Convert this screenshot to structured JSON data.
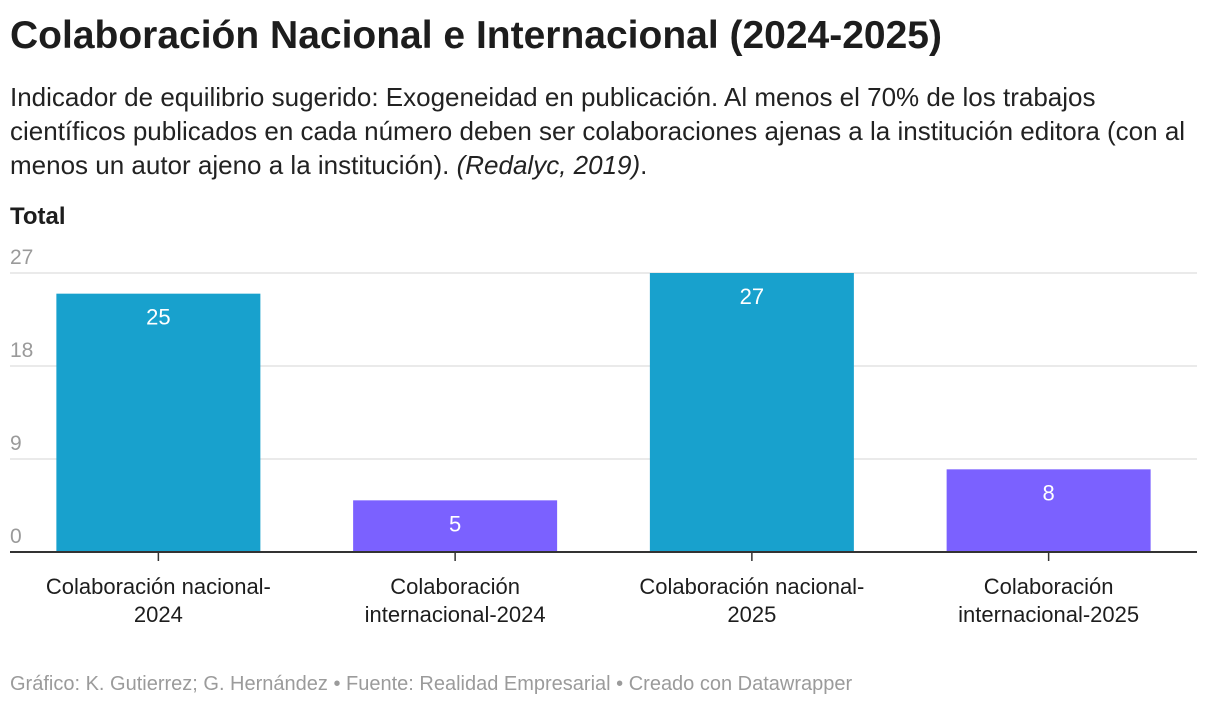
{
  "title": "Colaboración Nacional e Internacional (2024-2025)",
  "subtitle": {
    "text": "Indicador de equilibrio sugerido: Exogeneidad en publicación. Al menos el 70% de los trabajos científicos publicados en cada número deben ser colaboraciones ajenas a la institución editora (con al menos un autor ajeno a la institución).",
    "citation": "(Redalyc, 2019)",
    "end": "."
  },
  "footer": "Gráfico: K. Gutierrez; G. Hernández • Fuente: Realidad Empresarial • Creado con Datawrapper",
  "chart_data": {
    "type": "bar",
    "title": "Colaboración Nacional e Internacional (2024-2025)",
    "ylabel": "Total",
    "xlabel": "",
    "ylim": [
      0,
      27
    ],
    "yticks": [
      0,
      9,
      18,
      27
    ],
    "grid": true,
    "categories": [
      [
        "Colaboración nacional-",
        "2024"
      ],
      [
        "Colaboración",
        "internacional-2024"
      ],
      [
        "Colaboración nacional-",
        "2025"
      ],
      [
        "Colaboración",
        "internacional-2025"
      ]
    ],
    "values": [
      25,
      5,
      27,
      8
    ],
    "colors": [
      "#18a1cd",
      "#7b61ff",
      "#18a1cd",
      "#7b61ff"
    ],
    "data_labels": [
      "25",
      "5",
      "27",
      "8"
    ]
  }
}
